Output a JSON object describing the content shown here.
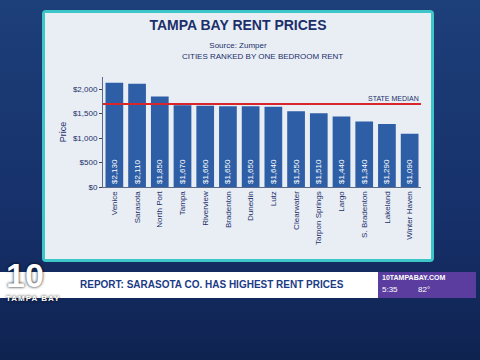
{
  "chart_data": {
    "type": "bar",
    "title": "TAMPA BAY RENT PRICES",
    "subtitle": "Source: Zumper",
    "annotation": "CITIES RANKED BY ONE BEDROOM RENT",
    "y_label": "Price",
    "categories": [
      "Venice",
      "Sarasota",
      "North Port",
      "Tampa",
      "Riverview",
      "Bradenton",
      "Dunedin",
      "Lutz",
      "Clearwater",
      "Tarpon Springs",
      "Largo",
      "S. Bradenton",
      "Lakeland",
      "Winter Haven"
    ],
    "values": [
      2130,
      2110,
      1850,
      1670,
      1660,
      1650,
      1650,
      1640,
      1550,
      1510,
      1440,
      1340,
      1290,
      1090
    ],
    "value_labels": [
      "$2,130",
      "$2,110",
      "$1,850",
      "$1,670",
      "$1,660",
      "$1,650",
      "$1,650",
      "$1,640",
      "$1,550",
      "$1,510",
      "$1,440",
      "$1,340",
      "$1,290",
      "$1,090"
    ],
    "color": "#2e5ea6",
    "data_labels": true,
    "ylim": [
      0,
      2250
    ],
    "yticks": [
      {
        "value": 0,
        "label": "$0"
      },
      {
        "value": 500,
        "label": "$500"
      },
      {
        "value": 1000,
        "label": "$1,000"
      },
      {
        "value": 1500,
        "label": "$1,500"
      },
      {
        "value": 2000,
        "label": "$2,000"
      }
    ],
    "grid": false,
    "median_line": {
      "label": "STATE MEDIAN",
      "value": 1700,
      "color": "#d9262c"
    }
  },
  "broadcast": {
    "headline": "REPORT: SARASOTA CO. HAS HIGHEST RENT PRICES",
    "station_number": "10",
    "station_name": "TAMPA BAY",
    "website": "10TAMPABAY.COM",
    "time": "5:35",
    "temperature": "82°"
  }
}
